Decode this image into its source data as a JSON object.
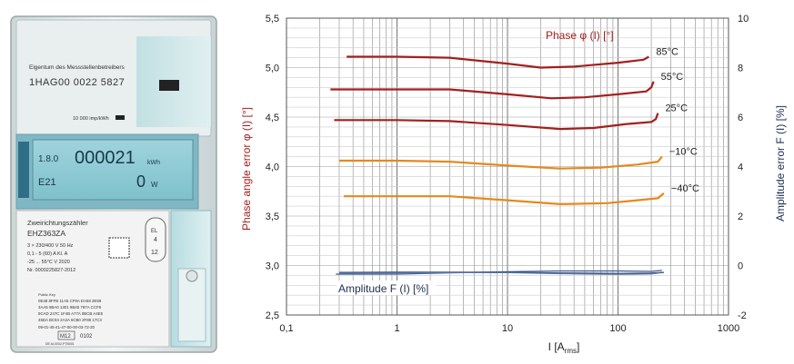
{
  "meter": {
    "owner_label": "Eigentum des Messstellenbetreibers",
    "meter_id": "1HAG00 0022 5827",
    "impulse_rate": "10 000 imp/kWh",
    "lcd_top_left": "1.8.0",
    "lcd_main_value": "000021",
    "lcd_main_unit": "kWh",
    "lcd_bottom_left": "E21",
    "lcd_power_value": "0",
    "lcd_power_unit": "W",
    "type_label": "Zweirichtungszähler",
    "model": "EHZ363ZA",
    "spec_lines": [
      "3 × 230/400 V   50 Hz",
      "0,1 - 5 (60) A        Kl. A",
      "-25 ... 55°C        V 2020"
    ],
    "serial_no": "Nr. 0000225827-2012",
    "badge_top": "EL",
    "badge_mid": "4",
    "badge_bottom": "12",
    "table_rows": [
      "Public Key",
      "0E48 8FFB 11A5 CF9A DA58 2E59",
      "3AA5 9BA0 1301 9B45 787A CCF8",
      "9CAD 247C 1F4B A77A 0BCB A4E5",
      "45DA BC94 2A3A 6CB0 2F88 17C3"
    ],
    "server_id": "09-01-45-41-47-00-00-03-72-20",
    "bottom_code": "M12",
    "bottom_num": "0102",
    "bottom_small": "DE-M-0002-PTB001"
  },
  "chart_data": {
    "type": "line",
    "xlabel_main": "I [A",
    "xlabel_sub": "rms",
    "xlabel_end": "]",
    "ylabel_left": "Phase angle error φ (I) [°]",
    "ylabel_right": "Amplitude error F (I) [%]",
    "x_scale": "log",
    "xlim": [
      0.1,
      1000
    ],
    "x_ticks": [
      0.1,
      1,
      10,
      100,
      1000
    ],
    "x_tick_labels": [
      "0,1",
      "1",
      "10",
      "100",
      "1000"
    ],
    "ylim_left": [
      2.5,
      5.5
    ],
    "y_left_ticks": [
      2.5,
      3.0,
      3.5,
      4.0,
      4.5,
      5.0,
      5.5
    ],
    "y_left_labels": [
      "2,5",
      "3,0",
      "3,5",
      "4,0",
      "4,5",
      "5,0",
      "5,5"
    ],
    "ylim_right": [
      -2,
      10
    ],
    "y_right_ticks": [
      -2,
      0,
      2,
      4,
      6,
      8,
      10
    ],
    "y_right_labels": [
      "-2",
      "0",
      "2",
      "4",
      "6",
      "8",
      "10"
    ],
    "grid": true,
    "phase_title": "Phase φ (I) [°]",
    "amplitude_title": "Amplitude F (I) [%]",
    "series": [
      {
        "name": "85°C",
        "axis": "left",
        "color": "#a31f1f",
        "x": [
          0.35,
          1,
          3,
          10,
          20,
          40,
          100,
          170,
          190
        ],
        "y": [
          5.11,
          5.11,
          5.1,
          5.04,
          5.0,
          5.01,
          5.05,
          5.08,
          5.11
        ]
      },
      {
        "name": "55°C",
        "axis": "left",
        "color": "#a31f1f",
        "x": [
          0.25,
          1,
          3,
          10,
          25,
          50,
          100,
          180,
          200,
          210
        ],
        "y": [
          4.78,
          4.78,
          4.78,
          4.73,
          4.69,
          4.7,
          4.73,
          4.76,
          4.8,
          4.86
        ]
      },
      {
        "name": "25°C",
        "axis": "left",
        "color": "#a31f1f",
        "x": [
          0.27,
          1,
          3,
          10,
          30,
          60,
          120,
          200,
          220,
          230
        ],
        "y": [
          4.47,
          4.47,
          4.46,
          4.42,
          4.38,
          4.39,
          4.43,
          4.45,
          4.48,
          4.54
        ]
      },
      {
        "name": "−10°C",
        "axis": "left",
        "color": "#e38a1f",
        "x": [
          0.3,
          1,
          3,
          10,
          30,
          70,
          150,
          230,
          250
        ],
        "y": [
          4.06,
          4.06,
          4.05,
          4.01,
          3.98,
          3.99,
          4.02,
          4.05,
          4.1
        ]
      },
      {
        "name": "−40°C",
        "axis": "left",
        "color": "#e38a1f",
        "x": [
          0.33,
          1,
          3,
          10,
          30,
          80,
          150,
          230,
          260
        ],
        "y": [
          3.7,
          3.7,
          3.7,
          3.66,
          3.62,
          3.63,
          3.66,
          3.68,
          3.73
        ]
      },
      {
        "name": "",
        "axis": "right",
        "color": "#3d5a8c",
        "x": [
          0.28,
          1,
          3,
          10,
          30,
          100,
          200,
          250
        ],
        "y": [
          -0.35,
          -0.35,
          -0.3,
          -0.25,
          -0.22,
          -0.22,
          -0.24,
          -0.2
        ]
      },
      {
        "name": "",
        "axis": "right",
        "color": "#2a3f66",
        "x": [
          0.3,
          1,
          3,
          10,
          30,
          100,
          200,
          260
        ],
        "y": [
          -0.28,
          -0.27,
          -0.27,
          -0.27,
          -0.3,
          -0.32,
          -0.31,
          -0.28
        ]
      },
      {
        "name": "",
        "axis": "right",
        "color": "#5a7ab0",
        "x": [
          0.3,
          1,
          3,
          10,
          30,
          100,
          200,
          240
        ],
        "y": [
          -0.31,
          -0.3,
          -0.29,
          -0.29,
          -0.33,
          -0.36,
          -0.34,
          -0.3
        ]
      }
    ]
  }
}
